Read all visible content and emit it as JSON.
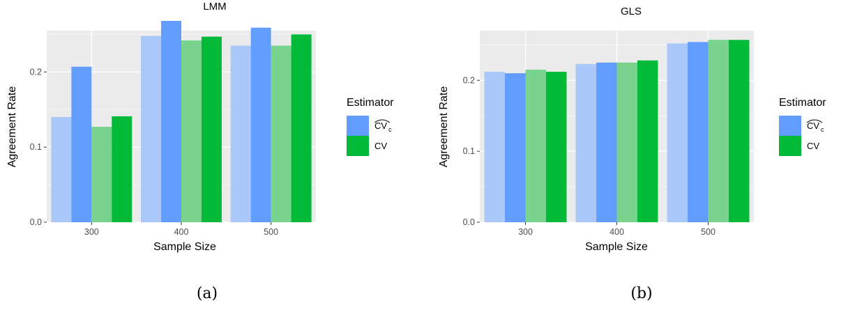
{
  "chart_data": [
    {
      "type": "bar",
      "title": "LMM",
      "caption": "(a)",
      "xlabel": "Sample Size",
      "ylabel": "Agreement Rate",
      "categories": [
        "300",
        "400",
        "500"
      ],
      "ylim": [
        0,
        0.255
      ],
      "yticks": [
        0.0,
        0.1,
        0.2
      ],
      "ytick_labels": [
        "0.0",
        "0.1",
        "0.2"
      ],
      "series": [
        {
          "values": [
            0.14,
            0.248,
            0.235
          ],
          "color": "#a9c7f8"
        },
        {
          "values": [
            0.207,
            0.268,
            0.259
          ],
          "color": "#619cff"
        },
        {
          "values": [
            0.127,
            0.242,
            0.235
          ],
          "color": "#77d38e"
        },
        {
          "values": [
            0.141,
            0.247,
            0.25
          ],
          "color": "#00ba38"
        }
      ]
    },
    {
      "type": "bar",
      "title": "GLS",
      "caption": "(b)",
      "xlabel": "Sample Size",
      "ylabel": "Agreement Rate",
      "categories": [
        "300",
        "400",
        "500"
      ],
      "ylim": [
        0,
        0.27
      ],
      "yticks": [
        0.0,
        0.1,
        0.2
      ],
      "ytick_labels": [
        "0.0",
        "0.1",
        "0.2"
      ],
      "series": [
        {
          "values": [
            0.212,
            0.223,
            0.252
          ],
          "color": "#a9c7f8"
        },
        {
          "values": [
            0.21,
            0.225,
            0.254
          ],
          "color": "#619cff"
        },
        {
          "values": [
            0.215,
            0.225,
            0.257
          ],
          "color": "#77d38e"
        },
        {
          "values": [
            0.212,
            0.228,
            0.257
          ],
          "color": "#00ba38"
        }
      ]
    }
  ],
  "legend": {
    "title": "Estimator",
    "entries": [
      {
        "label": "CV",
        "subscript": "c",
        "hat": true,
        "color": "#619cff"
      },
      {
        "label": "CV",
        "hat": false,
        "color": "#00ba38"
      }
    ]
  },
  "colors": {
    "panel_bg": "#ebebeb",
    "grid": "#ffffff",
    "tick": "#4d4d4d"
  }
}
